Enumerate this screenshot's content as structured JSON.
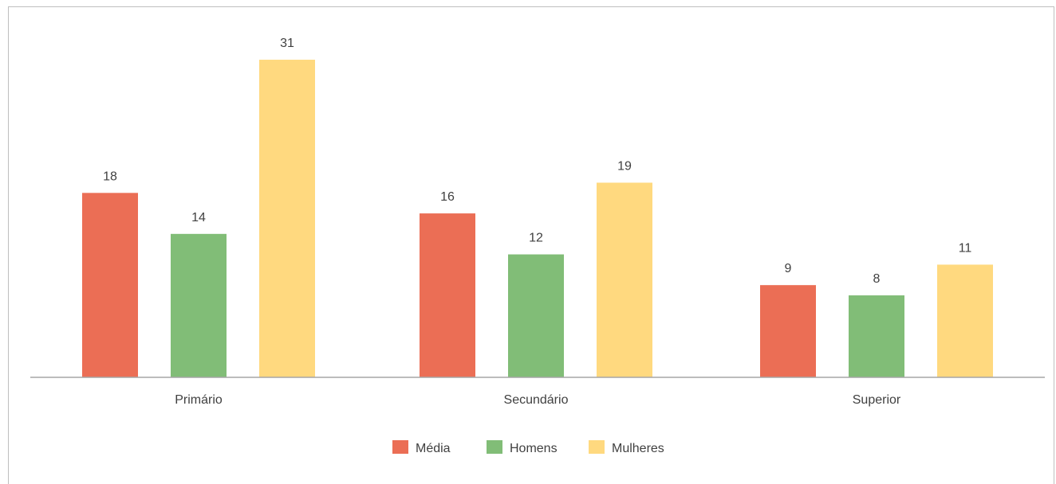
{
  "chart_data": {
    "type": "bar",
    "title": "",
    "xlabel": "",
    "ylabel": "",
    "ylim": [
      0,
      31
    ],
    "grid": false,
    "legend_position": "bottom",
    "categories": [
      "Primário",
      "Secundário",
      "Superior"
    ],
    "series": [
      {
        "name": "Média",
        "color": "#eb6e55",
        "values": [
          18,
          16,
          9
        ]
      },
      {
        "name": "Homens",
        "color": "#81bd77",
        "values": [
          14,
          12,
          8
        ]
      },
      {
        "name": "Mulheres",
        "color": "#ffd97f",
        "values": [
          31,
          19,
          11
        ]
      }
    ]
  }
}
